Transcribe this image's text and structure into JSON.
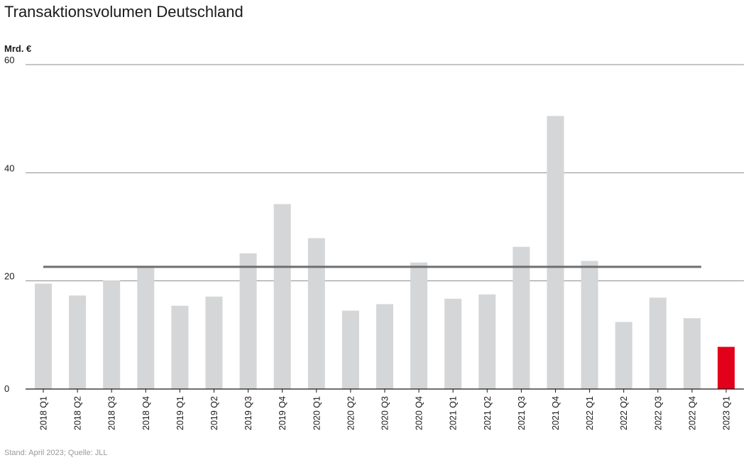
{
  "chart_data": {
    "type": "bar",
    "title": "Transaktionsvolumen Deutschland",
    "ylabel": "Mrd. €",
    "ylim": [
      0,
      60
    ],
    "yticks": [
      0,
      20,
      40,
      60
    ],
    "grid": true,
    "categories": [
      "2018 Q1",
      "2018 Q2",
      "2018 Q3",
      "2018 Q4",
      "2019 Q1",
      "2019 Q2",
      "2019 Q3",
      "2019 Q4",
      "2020 Q1",
      "2020 Q2",
      "2020 Q3",
      "2020 Q4",
      "2021 Q1",
      "2021 Q2",
      "2021 Q3",
      "2021 Q4",
      "2022 Q1",
      "2022 Q2",
      "2022 Q3",
      "2022 Q4",
      "2023 Q1"
    ],
    "values": [
      19.5,
      17.3,
      20.1,
      22.6,
      15.4,
      17.1,
      25.1,
      34.2,
      27.9,
      14.5,
      15.7,
      23.4,
      16.7,
      17.5,
      26.3,
      50.5,
      23.7,
      12.4,
      16.9,
      13.1,
      7.8
    ],
    "average_line": 22.6,
    "colors": {
      "bar": "#d5d6d7",
      "highlight": "#e2001a",
      "average": "#6d6e70",
      "grid": "#8c8c8c"
    }
  },
  "source": "Stand: April 2023; Quelle: JLL"
}
